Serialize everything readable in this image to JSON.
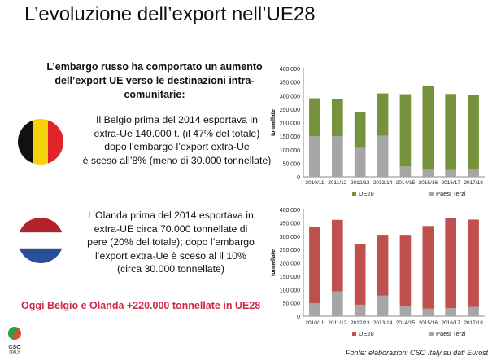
{
  "title": "L’evoluzione dell’export nell’UE28",
  "intro": "L’embargo russo ha comportato un aumento dell’export UE verso le destinazioni intra-comunitarie:",
  "belgium_text": [
    "Il Belgio prima del 2014 esportava in",
    "extra-Ue 140.000 t. (il 47% del totale)",
    "dopo l’embargo l’export extra-Ue",
    "è sceso all’8% (meno di 30.000 tonnellate)"
  ],
  "netherlands_text": [
    "L’Olanda prima del 2014 esportava in",
    "extra-UE circa 70.000 tonnellate di",
    "pere (20% del totale); dopo l’embargo",
    "l’export extra-Ue è sceso al il 10%",
    "(circa 30.000 tonnellate)"
  ],
  "highlight": "Oggi Belgio e Olanda +220.000 tonnellate in UE28",
  "source": "Fonte: elaborazioni CSO Italy su dati Eurostat",
  "logo": {
    "text": "CSO ITALY"
  },
  "colors": {
    "green": "#76923c",
    "red": "#c0504d",
    "grey": "#a6a6a6",
    "highlight": "#d0284c"
  },
  "chart_data": [
    {
      "type": "bar",
      "stacked": true,
      "country": "Belgium",
      "ylabel": "tonnellate",
      "ylim": [
        0,
        400000
      ],
      "yticks": [
        "0",
        "50.000",
        "100.000",
        "150.000",
        "200.000",
        "250.000",
        "300.000",
        "350.000",
        "400.000"
      ],
      "categories": [
        "2010/11",
        "2011/12",
        "2012/13",
        "2013/14",
        "2014/15",
        "2015/16",
        "2016/17",
        "2017/18"
      ],
      "series": [
        {
          "name": "Paesi Terzi",
          "color": "#a6a6a6",
          "values": [
            150000,
            150000,
            107000,
            152000,
            38000,
            30000,
            25000,
            27000
          ]
        },
        {
          "name": "UE28",
          "color": "#76923c",
          "values": [
            140000,
            138000,
            133000,
            156000,
            267000,
            305000,
            281000,
            276000
          ]
        }
      ],
      "legend": [
        "UE28",
        "Paesi Terzi"
      ],
      "legend_position": "bottom"
    },
    {
      "type": "bar",
      "stacked": true,
      "country": "Netherlands",
      "ylabel": "tonnellate",
      "ylim": [
        0,
        400000
      ],
      "yticks": [
        "0",
        "50.000",
        "100.000",
        "150.000",
        "200.000",
        "250.000",
        "300.000",
        "350.000",
        "400.000"
      ],
      "categories": [
        "2010/11",
        "2011/12",
        "2012/13",
        "2013/14",
        "2014/15",
        "2015/16",
        "2016/17",
        "2017/18"
      ],
      "series": [
        {
          "name": "Paesi Terzi",
          "color": "#a6a6a6",
          "values": [
            48000,
            93000,
            43000,
            77000,
            37000,
            28000,
            30000,
            35000
          ]
        },
        {
          "name": "UE28",
          "color": "#c0504d",
          "values": [
            287000,
            268000,
            228000,
            228000,
            268000,
            310000,
            338000,
            327000
          ]
        }
      ],
      "legend": [
        "UE28",
        "Paesi Terzi"
      ],
      "legend_position": "bottom"
    }
  ]
}
